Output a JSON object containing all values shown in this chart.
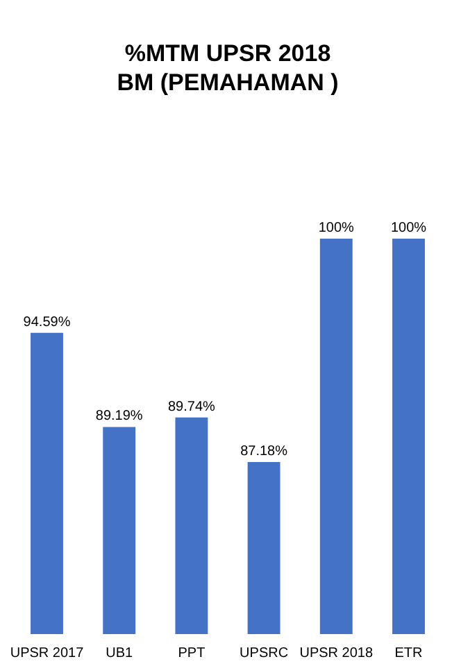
{
  "chart_data": {
    "type": "bar",
    "title": "%MTM UPSR 2018",
    "subtitle": "BM (PEMAHAMAN )",
    "categories": [
      "UPSR 2017",
      "UB1",
      "PPT",
      "UPSRC",
      "UPSR 2018",
      "ETR"
    ],
    "values": [
      94.59,
      89.19,
      89.74,
      87.18,
      100,
      100
    ],
    "value_labels": [
      "94.59%",
      "89.19%",
      "89.74%",
      "87.18%",
      "100%",
      "100%"
    ],
    "color": "#4472c4",
    "ylim": [
      77.3,
      100
    ],
    "tick_labels": "x",
    "grid": false
  }
}
